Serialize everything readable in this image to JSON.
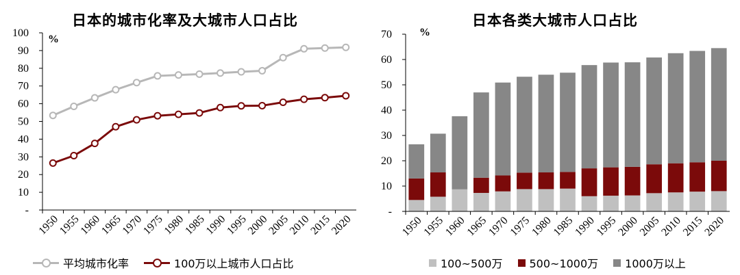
{
  "left": {
    "title": "日本的城市化率及大城市人口占比",
    "unit": "%",
    "chart_data": {
      "type": "line",
      "categories": [
        "1950",
        "1955",
        "1960",
        "1965",
        "1970",
        "1975",
        "1980",
        "1985",
        "1990",
        "1995",
        "2000",
        "2005",
        "2010",
        "2015",
        "2020"
      ],
      "series": [
        {
          "name": "平均城市化率",
          "color": "#b7b7b7",
          "values": [
            53.4,
            58.5,
            63.3,
            67.9,
            71.9,
            75.7,
            76.2,
            76.7,
            77.3,
            78.0,
            78.6,
            86.0,
            91.0,
            91.4,
            91.8
          ]
        },
        {
          "name": "100万以上城市人口占比",
          "color": "#7b0a0a",
          "values": [
            26.5,
            30.7,
            37.6,
            47.0,
            50.9,
            53.2,
            54.0,
            54.8,
            57.8,
            58.8,
            58.9,
            60.8,
            62.5,
            63.4,
            64.5
          ]
        }
      ],
      "ylim": [
        0,
        100
      ],
      "yticks": [
        "-",
        "10",
        "20",
        "30",
        "40",
        "50",
        "60",
        "70",
        "80",
        "90",
        "100"
      ],
      "legend_position": "bottom"
    }
  },
  "right": {
    "title": "日本各类大城市人口占比",
    "unit": "%",
    "chart_data": {
      "type": "bar",
      "stacked": true,
      "categories": [
        "1950",
        "1955",
        "1960",
        "1965",
        "1970",
        "1975",
        "1980",
        "1985",
        "1990",
        "1995",
        "2000",
        "2005",
        "2010",
        "2015",
        "2020"
      ],
      "series": [
        {
          "name": "100~500万",
          "color": "#c0c0c0",
          "values": [
            4.5,
            5.8,
            8.7,
            7.3,
            7.9,
            8.8,
            8.8,
            9.0,
            6.0,
            6.2,
            6.3,
            7.2,
            7.5,
            7.8,
            8.0
          ]
        },
        {
          "name": "500~1000万",
          "color": "#7b0a0a",
          "values": [
            8.5,
            9.6,
            0,
            6.0,
            6.3,
            6.5,
            6.6,
            6.6,
            11.0,
            11.2,
            11.3,
            11.4,
            11.5,
            11.6,
            12.0
          ]
        },
        {
          "name": "1000万以上",
          "color": "#878787",
          "values": [
            13.5,
            15.3,
            28.9,
            33.7,
            36.7,
            37.9,
            38.6,
            39.2,
            40.8,
            41.4,
            41.3,
            42.2,
            43.5,
            44.0,
            44.5
          ]
        }
      ],
      "ylim": [
        0,
        70
      ],
      "yticks": [
        "-",
        "10",
        "20",
        "30",
        "40",
        "50",
        "60",
        "70"
      ],
      "legend_position": "bottom"
    }
  }
}
